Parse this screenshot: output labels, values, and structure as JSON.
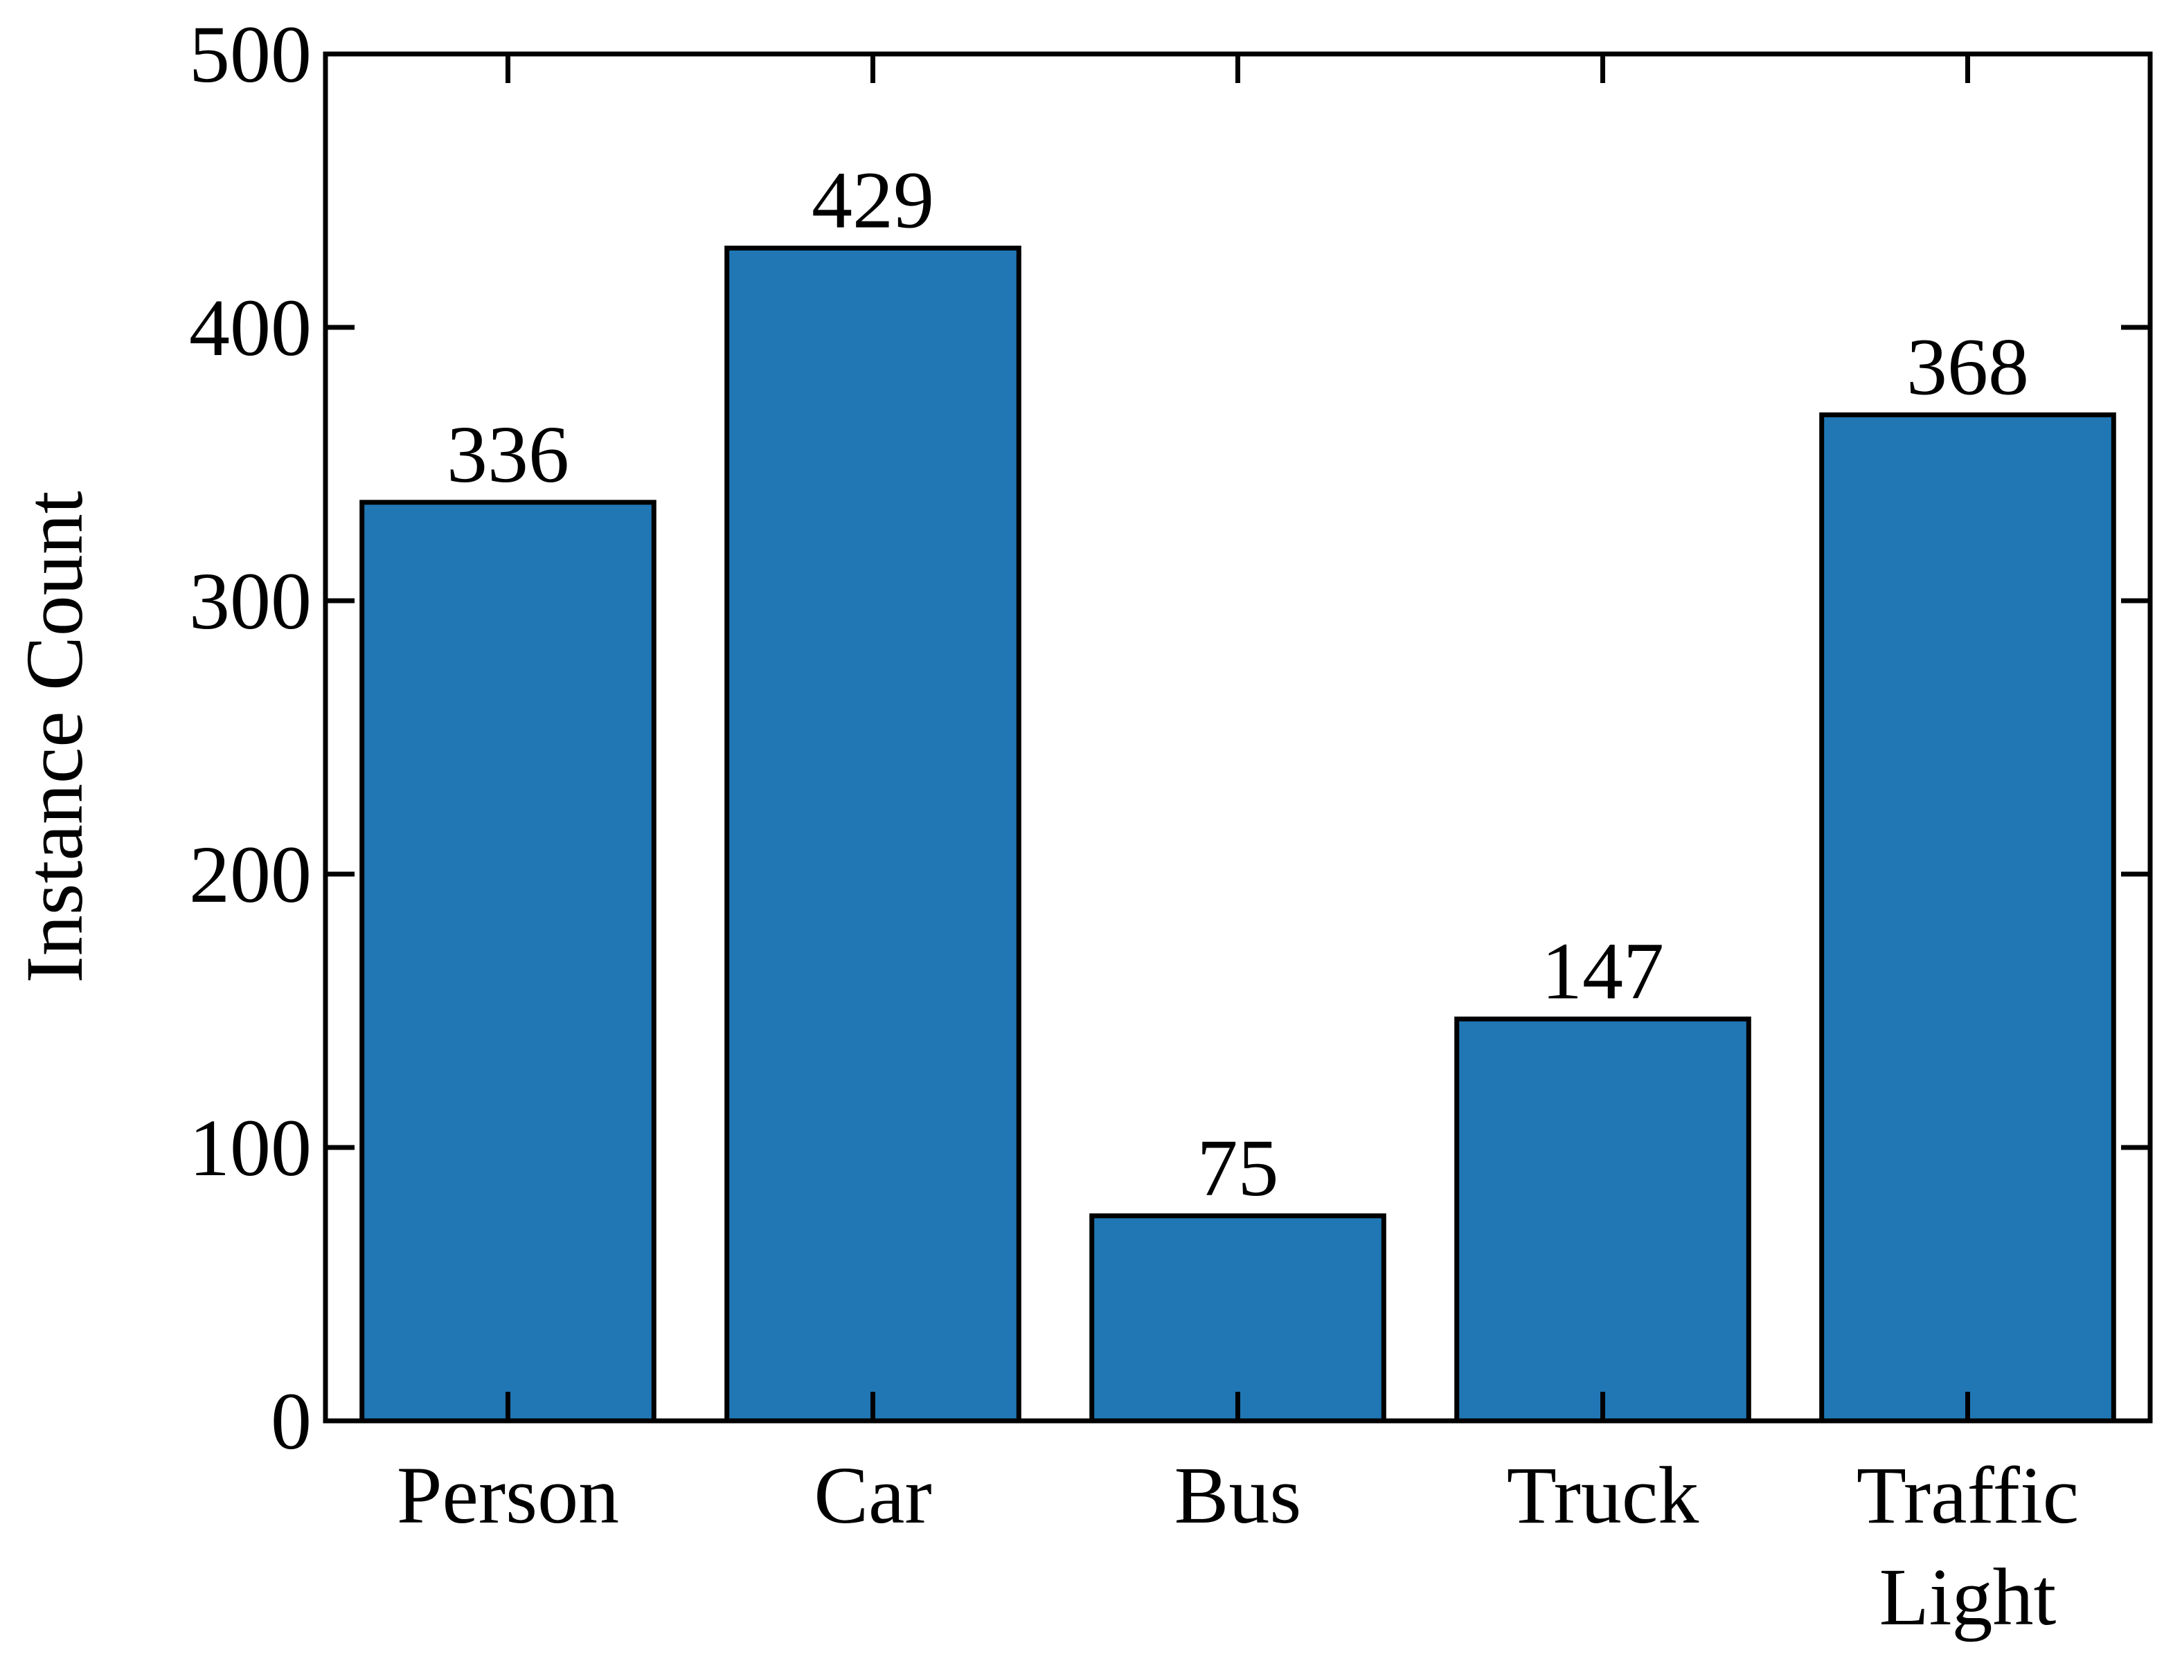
{
  "chart_data": {
    "type": "bar",
    "title": "",
    "xlabel": "",
    "ylabel": "Instance Count",
    "categories": [
      [
        "Person"
      ],
      [
        "Car"
      ],
      [
        "Bus"
      ],
      [
        "Truck"
      ],
      [
        "Traffic",
        "Light"
      ]
    ],
    "values": [
      336,
      429,
      75,
      147,
      368
    ],
    "data_labels": [
      "336",
      "429",
      "75",
      "147",
      "368"
    ],
    "ylim": [
      0,
      500
    ],
    "yticks": [
      0,
      100,
      200,
      300,
      400,
      500
    ],
    "ytick_labels": [
      "0",
      "100",
      "200",
      "300",
      "400",
      "500"
    ],
    "grid": false,
    "legend": "none",
    "colors": {
      "bar_fill": "#2177b4",
      "bar_edge": "#000000",
      "axis": "#000000"
    }
  }
}
